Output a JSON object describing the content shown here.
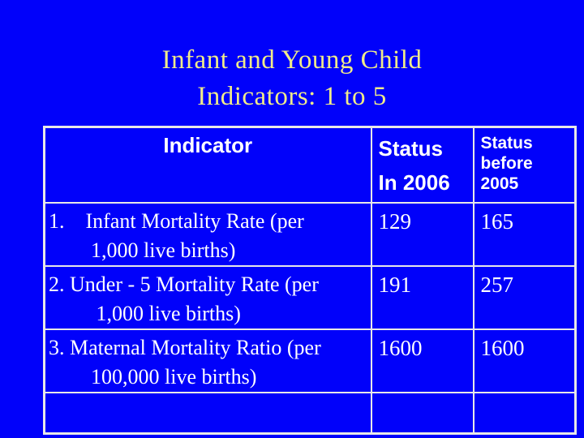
{
  "slide": {
    "title_line1": "Infant and Young Child",
    "title_line2": "Indicators: 1 to 5"
  },
  "table": {
    "headers": {
      "indicator": "Indicator",
      "status_in_2006": "Status\nIn 2006",
      "status_before_2005": "Status\nbefore\n2005"
    },
    "rows": [
      {
        "indicator": "1.    Infant Mortality Rate (per\n        1,000 live births)",
        "status_in_2006": "129",
        "status_before_2005": "165"
      },
      {
        "indicator": "2. Under - 5 Mortality Rate (per\n         1,000 live births)",
        "status_in_2006": "191",
        "status_before_2005": "257"
      },
      {
        "indicator": "3. Maternal Mortality Ratio (per\n        100,000 live births)",
        "status_in_2006": "1600",
        "status_before_2005": "1600"
      }
    ]
  },
  "colors": {
    "background": "#0101FA",
    "title_text": "#F0EB8A",
    "table_border": "#E8E8E8",
    "table_text": "#FFFFFF"
  }
}
